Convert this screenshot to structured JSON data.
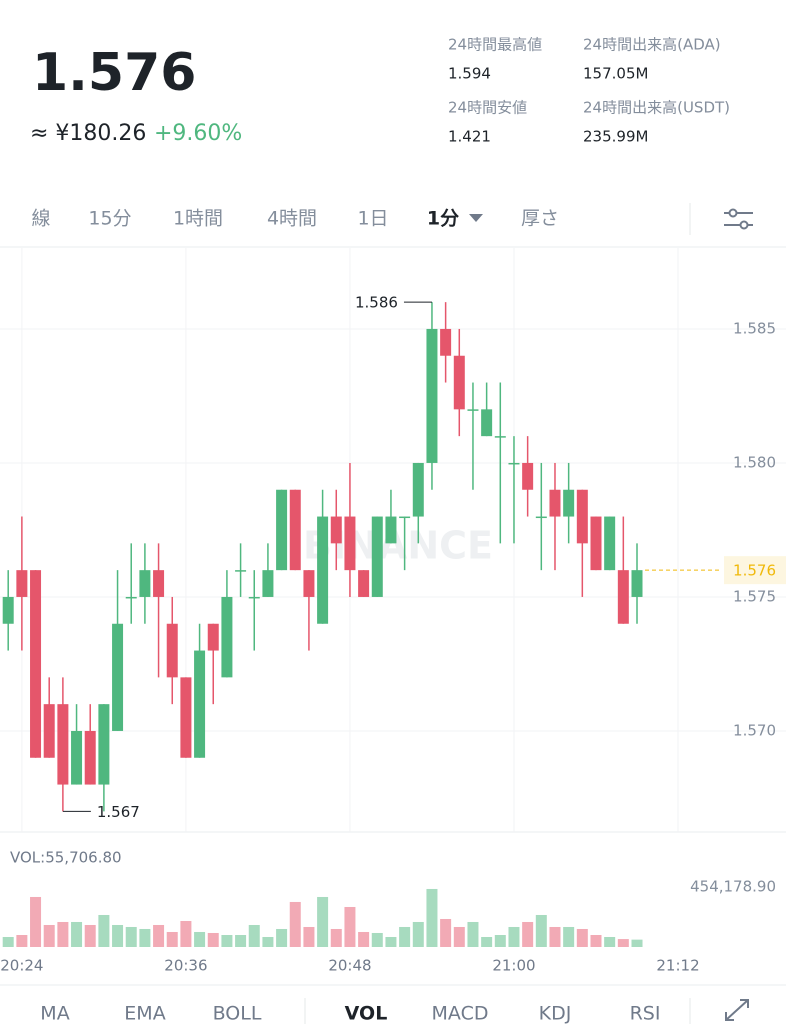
{
  "header": {
    "price": "1.576",
    "cny": "≈ ¥180.26",
    "change": "+9.60%"
  },
  "stats": [
    {
      "label": "24時間最高値",
      "value": "1.594"
    },
    {
      "label": "24時間出来高(ADA)",
      "value": "157.05M"
    },
    {
      "label": "24時間安値",
      "value": "1.421"
    },
    {
      "label": "24時間出来高(USDT)",
      "value": "235.99M"
    }
  ],
  "tabs": [
    "線",
    "15分",
    "1時間",
    "4時間",
    "1日",
    "1分",
    "厚さ"
  ],
  "indicators": [
    "MA",
    "EMA",
    "BOLL",
    "VOL",
    "MACD",
    "KDJ",
    "RSI"
  ],
  "chart_data": [
    {
      "type": "candlestick",
      "watermark": "BINANCE",
      "up_color": "#4fb77f",
      "down_color": "#e5566b",
      "open": [
        1.574,
        1.576,
        1.576,
        1.571,
        1.571,
        1.568,
        1.57,
        1.568,
        1.57,
        1.575,
        1.575,
        1.576,
        1.574,
        1.572,
        1.569,
        1.574,
        1.572,
        1.576,
        1.575,
        1.575,
        1.576,
        1.579,
        1.576,
        1.574,
        1.578,
        1.578,
        1.576,
        1.575,
        1.577,
        1.578,
        1.578,
        1.58,
        1.585,
        1.584,
        1.582,
        1.581,
        1.581,
        1.58,
        1.58,
        1.578,
        1.579,
        1.578,
        1.579,
        1.578,
        1.576,
        1.576,
        1.575
      ],
      "high": [
        1.576,
        1.578,
        1.576,
        1.572,
        1.572,
        1.571,
        1.571,
        1.571,
        1.576,
        1.577,
        1.577,
        1.577,
        1.575,
        1.572,
        1.574,
        1.574,
        1.576,
        1.577,
        1.576,
        1.577,
        1.579,
        1.579,
        1.576,
        1.579,
        1.579,
        1.58,
        1.576,
        1.578,
        1.579,
        1.578,
        1.58,
        1.586,
        1.586,
        1.585,
        1.583,
        1.583,
        1.583,
        1.581,
        1.581,
        1.58,
        1.58,
        1.58,
        1.579,
        1.578,
        1.578,
        1.578,
        1.577
      ],
      "low": [
        1.573,
        1.573,
        1.569,
        1.569,
        1.567,
        1.568,
        1.568,
        1.567,
        1.57,
        1.574,
        1.574,
        1.572,
        1.571,
        1.569,
        1.569,
        1.571,
        1.572,
        1.575,
        1.573,
        1.575,
        1.576,
        1.576,
        1.573,
        1.574,
        1.576,
        1.575,
        1.575,
        1.575,
        1.577,
        1.576,
        1.577,
        1.579,
        1.583,
        1.581,
        1.579,
        1.581,
        1.577,
        1.577,
        1.578,
        1.576,
        1.576,
        1.577,
        1.575,
        1.576,
        1.576,
        1.574,
        1.574
      ],
      "close": [
        1.575,
        1.575,
        1.569,
        1.569,
        1.568,
        1.57,
        1.568,
        1.571,
        1.574,
        1.575,
        1.576,
        1.575,
        1.572,
        1.569,
        1.573,
        1.573,
        1.575,
        1.576,
        1.575,
        1.576,
        1.579,
        1.576,
        1.575,
        1.578,
        1.577,
        1.576,
        1.575,
        1.578,
        1.578,
        1.578,
        1.58,
        1.585,
        1.584,
        1.582,
        1.582,
        1.582,
        1.581,
        1.58,
        1.579,
        1.578,
        1.578,
        1.579,
        1.577,
        1.576,
        1.578,
        1.574,
        1.576
      ],
      "xlim": [
        -0.6,
        56.9
      ],
      "ylim": [
        1.56623,
        1.58802
      ],
      "yticks": [
        {
          "value": 1.57,
          "label": "1.570"
        },
        {
          "value": 1.575,
          "label": "1.575"
        },
        {
          "value": 1.58,
          "label": "1.580"
        },
        {
          "value": 1.585,
          "label": "1.585"
        }
      ],
      "grid": true,
      "annotations": [
        {
          "x": 31,
          "y": 1.586
        },
        {
          "x": 4,
          "y": 1.567
        }
      ],
      "last_price": 1.576,
      "last_price_color": "#f0b90b"
    },
    {
      "type": "bar",
      "title": "VOL:55,706.80",
      "up_color": "#4fb77f",
      "down_color": "#e5566b",
      "values": [
        75700,
        90800,
        378500,
        166500,
        189300,
        189300,
        166500,
        242200,
        166500,
        151400,
        136300,
        166500,
        113600,
        196800,
        113600,
        106000,
        90800,
        90800,
        166500,
        75700,
        136300,
        340700,
        151400,
        378500,
        136300,
        302800,
        113600,
        106000,
        75700,
        151400,
        189300,
        439100,
        212000,
        151400,
        189300,
        75700,
        90800,
        151400,
        189300,
        242200,
        151400,
        151400,
        136300,
        90800,
        75700,
        60000,
        55706.8
      ],
      "xlim": [
        -0.6,
        56.9
      ],
      "ylim": [
        0,
        734000
      ],
      "yticks": [
        {
          "value": 454178.9,
          "label": "454,178.90"
        }
      ],
      "xticks": [
        {
          "value": 1,
          "label": "20:24"
        },
        {
          "value": 13,
          "label": "20:36"
        },
        {
          "value": 25,
          "label": "20:48"
        },
        {
          "value": 37,
          "label": "21:00"
        },
        {
          "value": 49,
          "label": "21:12"
        }
      ]
    }
  ]
}
